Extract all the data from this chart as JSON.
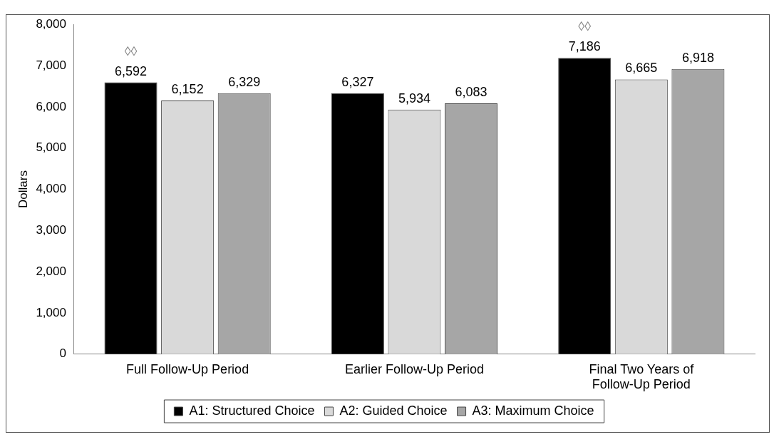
{
  "chart_data": {
    "type": "bar",
    "ylabel": "Dollars",
    "categories": [
      "Full Follow-Up Period",
      "Earlier Follow-Up Period",
      "Final Two Years of Follow-Up Period"
    ],
    "series": [
      {
        "name": "A1: Structured Choice",
        "color": "#000000",
        "values": [
          6592,
          6327,
          7186
        ],
        "value_labels": [
          "6,592",
          "6,327",
          "7,186"
        ]
      },
      {
        "name": "A2: Guided Choice",
        "color": "#d9d9d9",
        "values": [
          6152,
          5934,
          6665
        ],
        "value_labels": [
          "6,152",
          "5,934",
          "6,665"
        ]
      },
      {
        "name": "A3: Maximum Choice",
        "color": "#a6a6a6",
        "values": [
          6329,
          6083,
          6918
        ],
        "value_labels": [
          "6,329",
          "6,083",
          "6,918"
        ]
      }
    ],
    "ylim": [
      0,
      8000
    ],
    "yticks": [
      {
        "value": 0,
        "label": "0"
      },
      {
        "value": 1000,
        "label": "1,000"
      },
      {
        "value": 2000,
        "label": "2,000"
      },
      {
        "value": 3000,
        "label": "3,000"
      },
      {
        "value": 4000,
        "label": "4,000"
      },
      {
        "value": 5000,
        "label": "5,000"
      },
      {
        "value": 6000,
        "label": "6,000"
      },
      {
        "value": 7000,
        "label": "7,000"
      },
      {
        "value": 8000,
        "label": "8,000"
      }
    ],
    "grid": false,
    "legend": "bottom",
    "annotations": [
      "◊◊",
      "◊◊"
    ]
  }
}
